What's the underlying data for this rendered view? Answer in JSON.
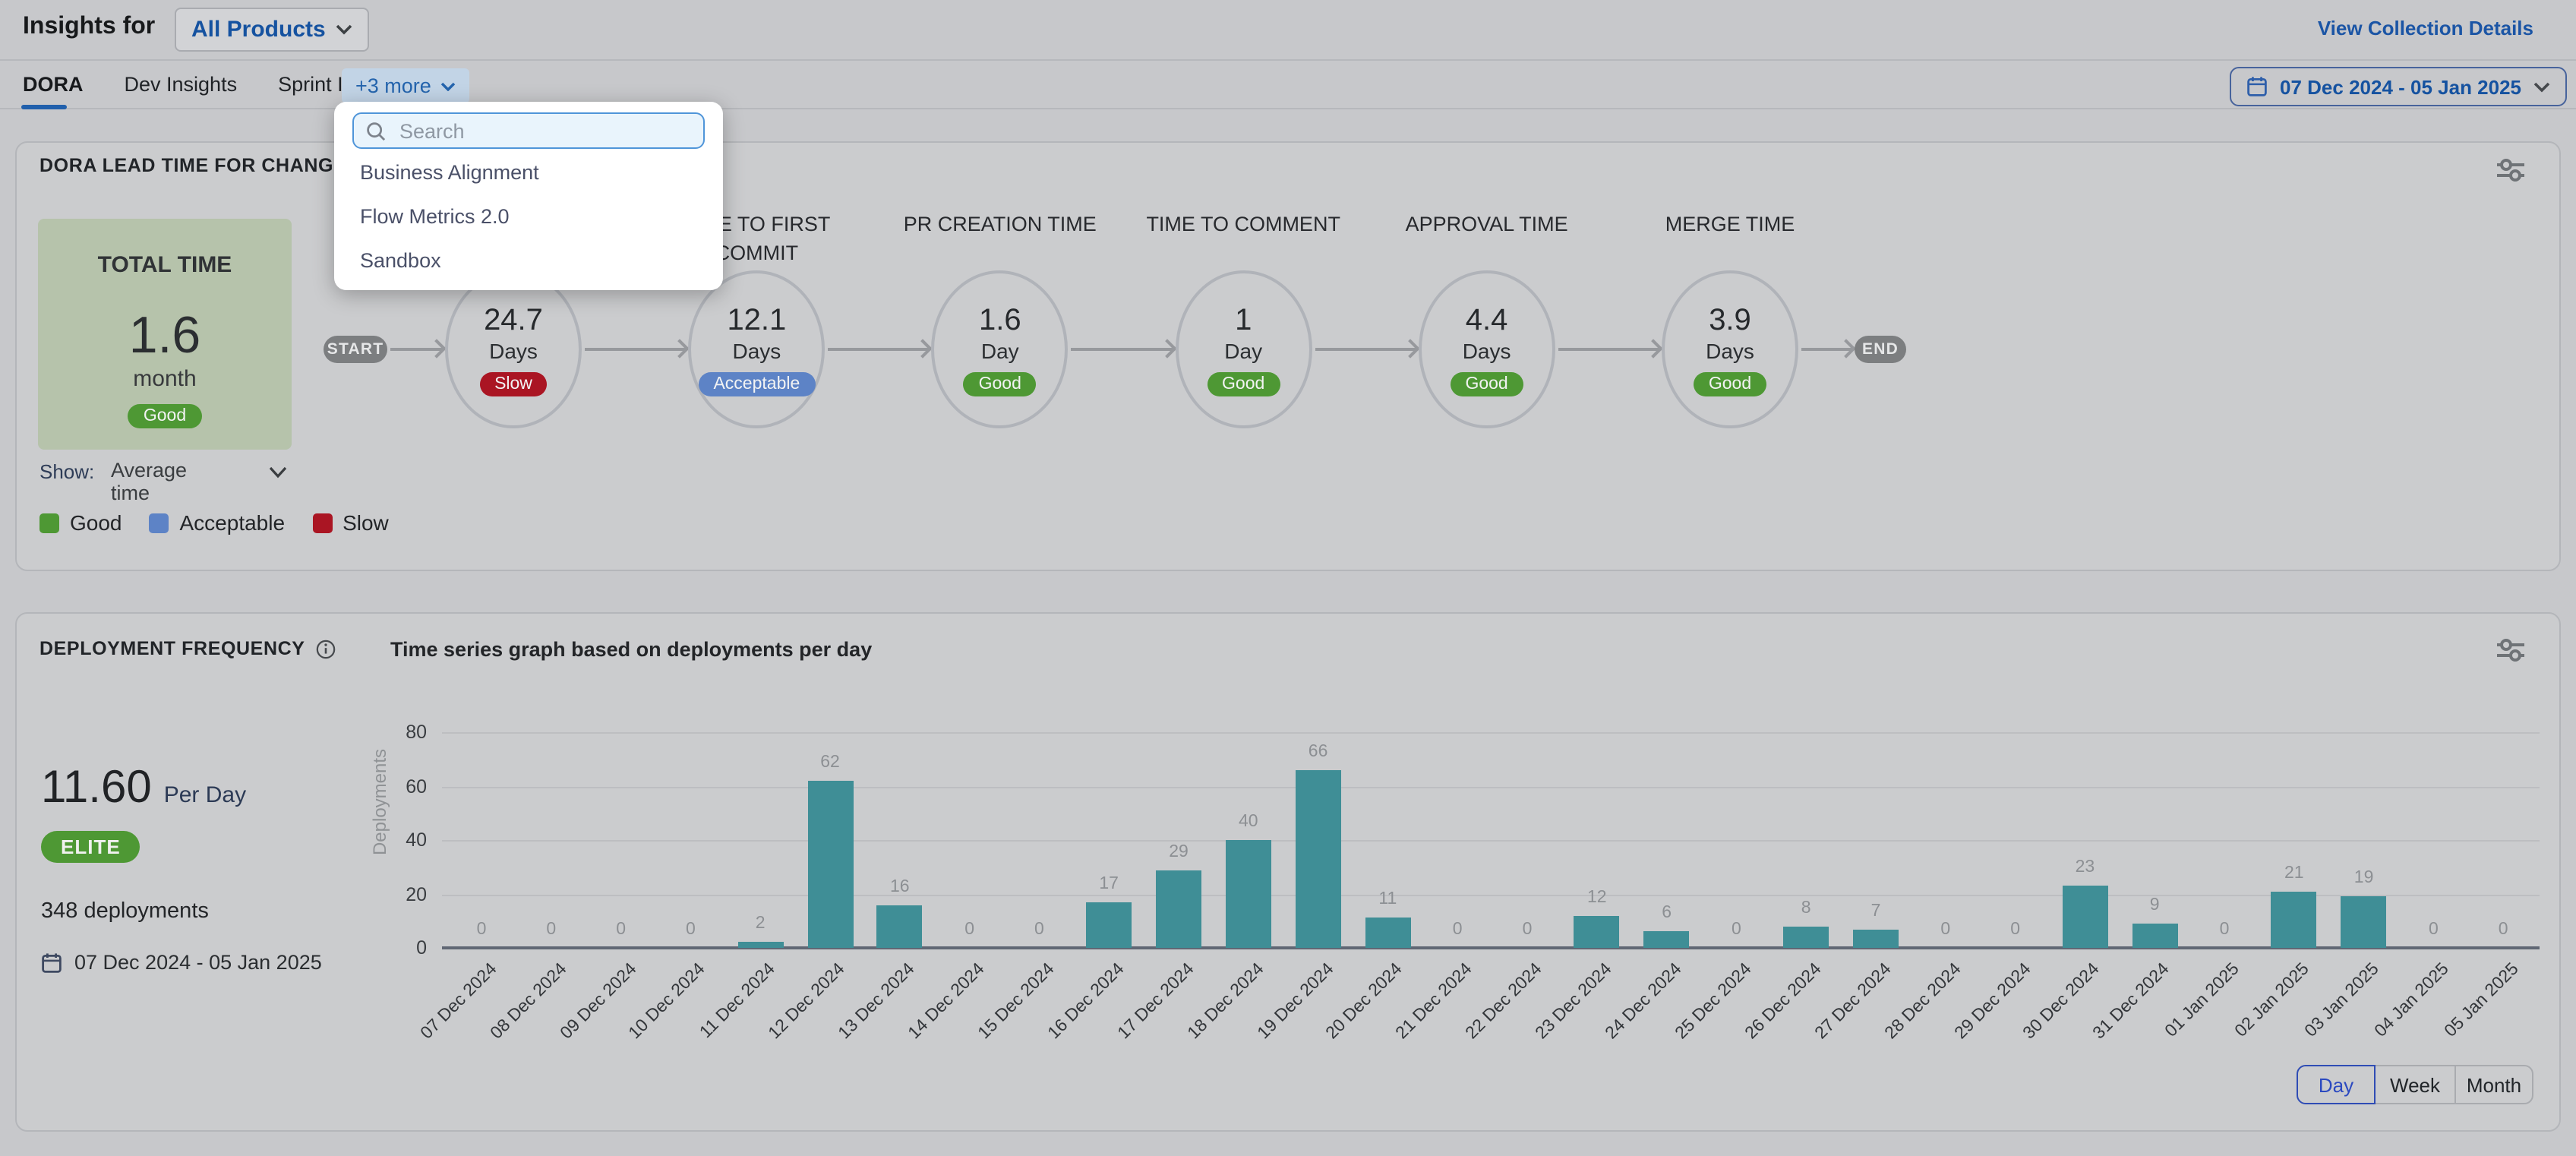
{
  "page": {
    "background": "#c7c8cb",
    "accent_blue": "#1f5fae"
  },
  "header": {
    "title": "Insights for",
    "collection_selector": {
      "label": "All Products"
    },
    "view_collection_details": "View Collection Details"
  },
  "tabs": {
    "items": [
      {
        "label": "DORA",
        "active": true
      },
      {
        "label": "Dev Insights",
        "active": false
      },
      {
        "label": "Sprint Insights",
        "active": false
      }
    ],
    "more": {
      "label": "+3 more"
    }
  },
  "date_range_button": {
    "label": "07 Dec 2024 - 05 Jan 2025"
  },
  "insights_dropdown": {
    "search_placeholder": "Search",
    "items": [
      "Business Alignment",
      "Flow Metrics 2.0",
      "Sandbox"
    ]
  },
  "status_colors": {
    "Good": "#4e9834",
    "Acceptable": "#5d83c6",
    "Slow": "#aa1523"
  },
  "lead_time_card": {
    "title": "DORA LEAD TIME FOR CHANGES REP",
    "total": {
      "label": "TOTAL TIME",
      "value": "1.6",
      "unit": "month",
      "status": "Good"
    },
    "pipeline": {
      "start_label": "START",
      "end_label": "END",
      "stages": [
        {
          "label": "",
          "value": "24.7",
          "unit": "Days",
          "status": "Slow"
        },
        {
          "label": "TIME TO FIRST COMMIT",
          "value": "12.1",
          "unit": "Days",
          "status": "Acceptable"
        },
        {
          "label": "PR CREATION TIME",
          "value": "1.6",
          "unit": "Day",
          "status": "Good"
        },
        {
          "label": "TIME TO COMMENT",
          "value": "1",
          "unit": "Day",
          "status": "Good"
        },
        {
          "label": "APPROVAL TIME",
          "value": "4.4",
          "unit": "Days",
          "status": "Good"
        },
        {
          "label": "MERGE TIME",
          "value": "3.9",
          "unit": "Days",
          "status": "Good"
        }
      ]
    },
    "show_control": {
      "label": "Show:",
      "value": "Average time"
    },
    "legend": [
      {
        "label": "Good",
        "color": "#4e9834"
      },
      {
        "label": "Acceptable",
        "color": "#5d83c6"
      },
      {
        "label": "Slow",
        "color": "#aa1523"
      }
    ]
  },
  "deployment_card": {
    "title": "DEPLOYMENT FREQUENCY",
    "subtitle": "Time series graph based on deployments per day",
    "rate": {
      "value": "11.60",
      "unit": "Per Day"
    },
    "badge": "ELITE",
    "deployments_total": "348 deployments",
    "date_range": "07 Dec 2024 - 05 Jan 2025",
    "granularity": [
      {
        "label": "Day",
        "active": true
      },
      {
        "label": "Week",
        "active": false
      },
      {
        "label": "Month",
        "active": false
      }
    ]
  },
  "chart_data": {
    "type": "bar",
    "title": "Time series graph based on deployments per day",
    "xlabel": "",
    "ylabel": "Deployments",
    "ylim": [
      0,
      80
    ],
    "yticks": [
      0,
      20,
      40,
      60,
      80
    ],
    "grid": true,
    "legend_position": "none",
    "bar_color": "#3f8e96",
    "value_labels": true,
    "categories": [
      "07 Dec 2024",
      "08 Dec 2024",
      "09 Dec 2024",
      "10 Dec 2024",
      "11 Dec 2024",
      "12 Dec 2024",
      "13 Dec 2024",
      "14 Dec 2024",
      "15 Dec 2024",
      "16 Dec 2024",
      "17 Dec 2024",
      "18 Dec 2024",
      "19 Dec 2024",
      "20 Dec 2024",
      "21 Dec 2024",
      "22 Dec 2024",
      "23 Dec 2024",
      "24 Dec 2024",
      "25 Dec 2024",
      "26 Dec 2024",
      "27 Dec 2024",
      "28 Dec 2024",
      "29 Dec 2024",
      "30 Dec 2024",
      "31 Dec 2024",
      "01 Jan 2025",
      "02 Jan 2025",
      "03 Jan 2025",
      "04 Jan 2025",
      "05 Jan 2025"
    ],
    "values": [
      0,
      0,
      0,
      0,
      2,
      62,
      16,
      0,
      0,
      17,
      29,
      40,
      66,
      11,
      0,
      0,
      12,
      6,
      0,
      8,
      7,
      0,
      0,
      23,
      9,
      0,
      21,
      19,
      0,
      0
    ]
  }
}
